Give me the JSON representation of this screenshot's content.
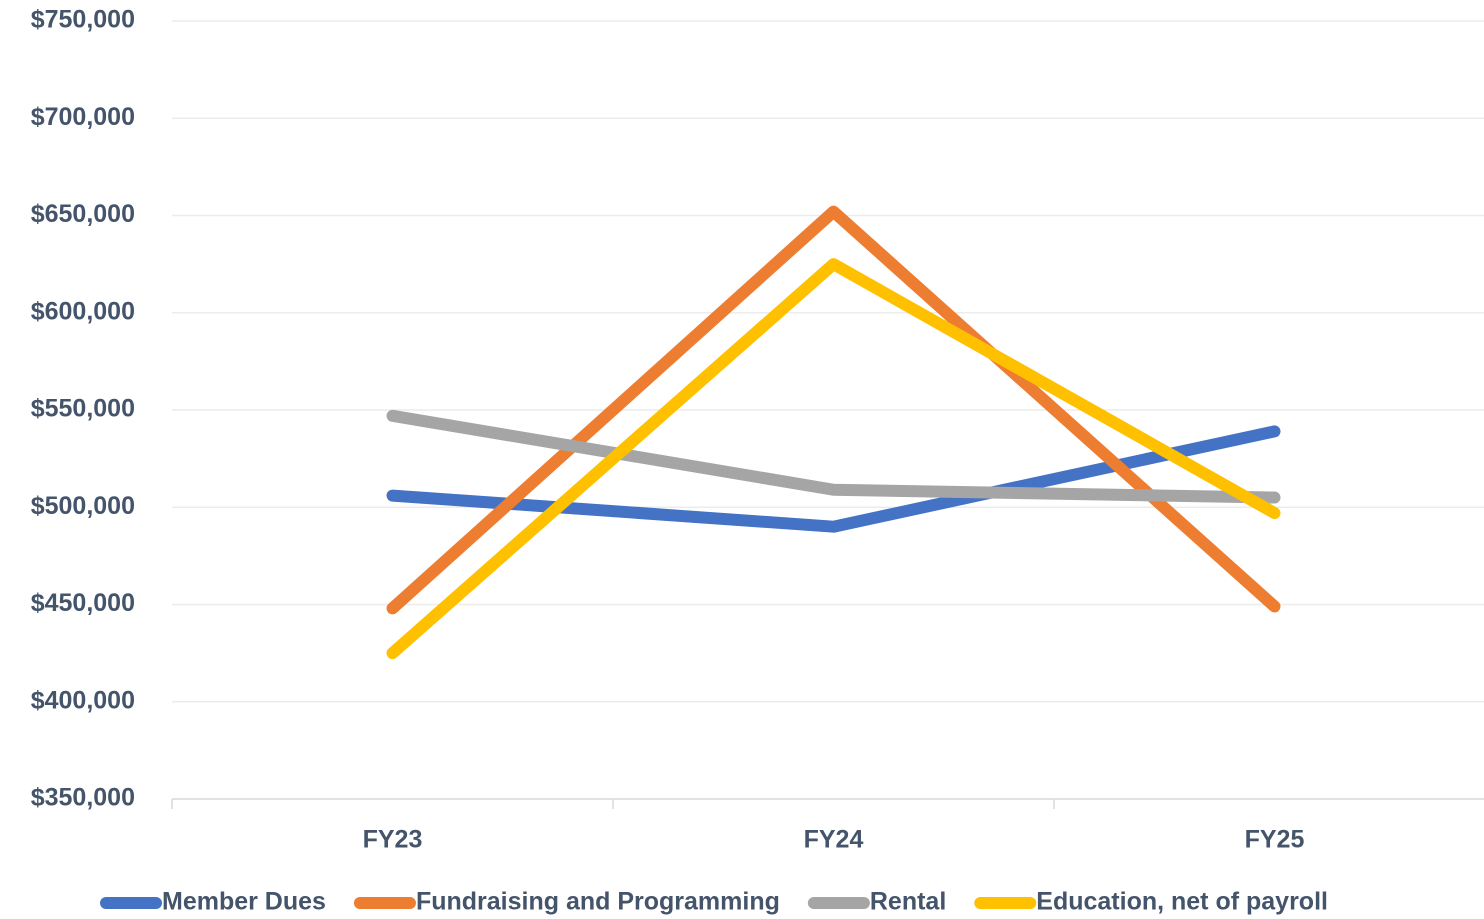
{
  "chart_data": {
    "type": "line",
    "categories": [
      "FY23",
      "FY24",
      "FY25"
    ],
    "series": [
      {
        "name": "Member Dues",
        "color": "#4472c4",
        "values": [
          506000,
          490000,
          539000
        ]
      },
      {
        "name": "Fundraising and Programming",
        "color": "#ed7d31",
        "values": [
          448000,
          652000,
          449000
        ]
      },
      {
        "name": "Rental",
        "color": "#a5a5a5",
        "values": [
          547000,
          509000,
          505000
        ]
      },
      {
        "name": "Education, net of payroll",
        "color": "#ffc000",
        "values": [
          425000,
          625000,
          497000
        ]
      }
    ],
    "ylim": [
      350000,
      750000
    ],
    "yticks": [
      {
        "value": 350000,
        "label": "$350,000"
      },
      {
        "value": 400000,
        "label": "$400,000"
      },
      {
        "value": 450000,
        "label": "$450,000"
      },
      {
        "value": 500000,
        "label": "$500,000"
      },
      {
        "value": 550000,
        "label": "$550,000"
      },
      {
        "value": 600000,
        "label": "$600,000"
      },
      {
        "value": 650000,
        "label": "$650,000"
      },
      {
        "value": 700000,
        "label": "$700,000"
      },
      {
        "value": 750000,
        "label": "$750,000"
      }
    ],
    "grid": true,
    "legend": "bottom"
  }
}
